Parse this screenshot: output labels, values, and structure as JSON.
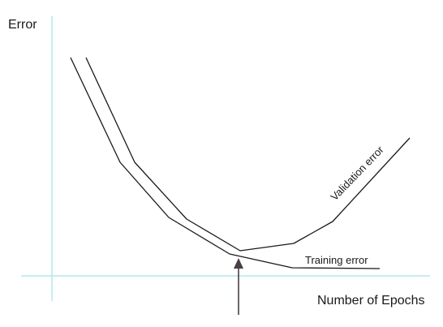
{
  "axes": {
    "y_label": "Error",
    "x_label": "Number of Epochs",
    "axis_color": "#9fe3ee"
  },
  "curves": {
    "training_label": "Training error",
    "validation_label": "Validation error",
    "line_color": "#1a1a1a"
  },
  "marker": {
    "arrow_color": "#4a3f47"
  }
}
